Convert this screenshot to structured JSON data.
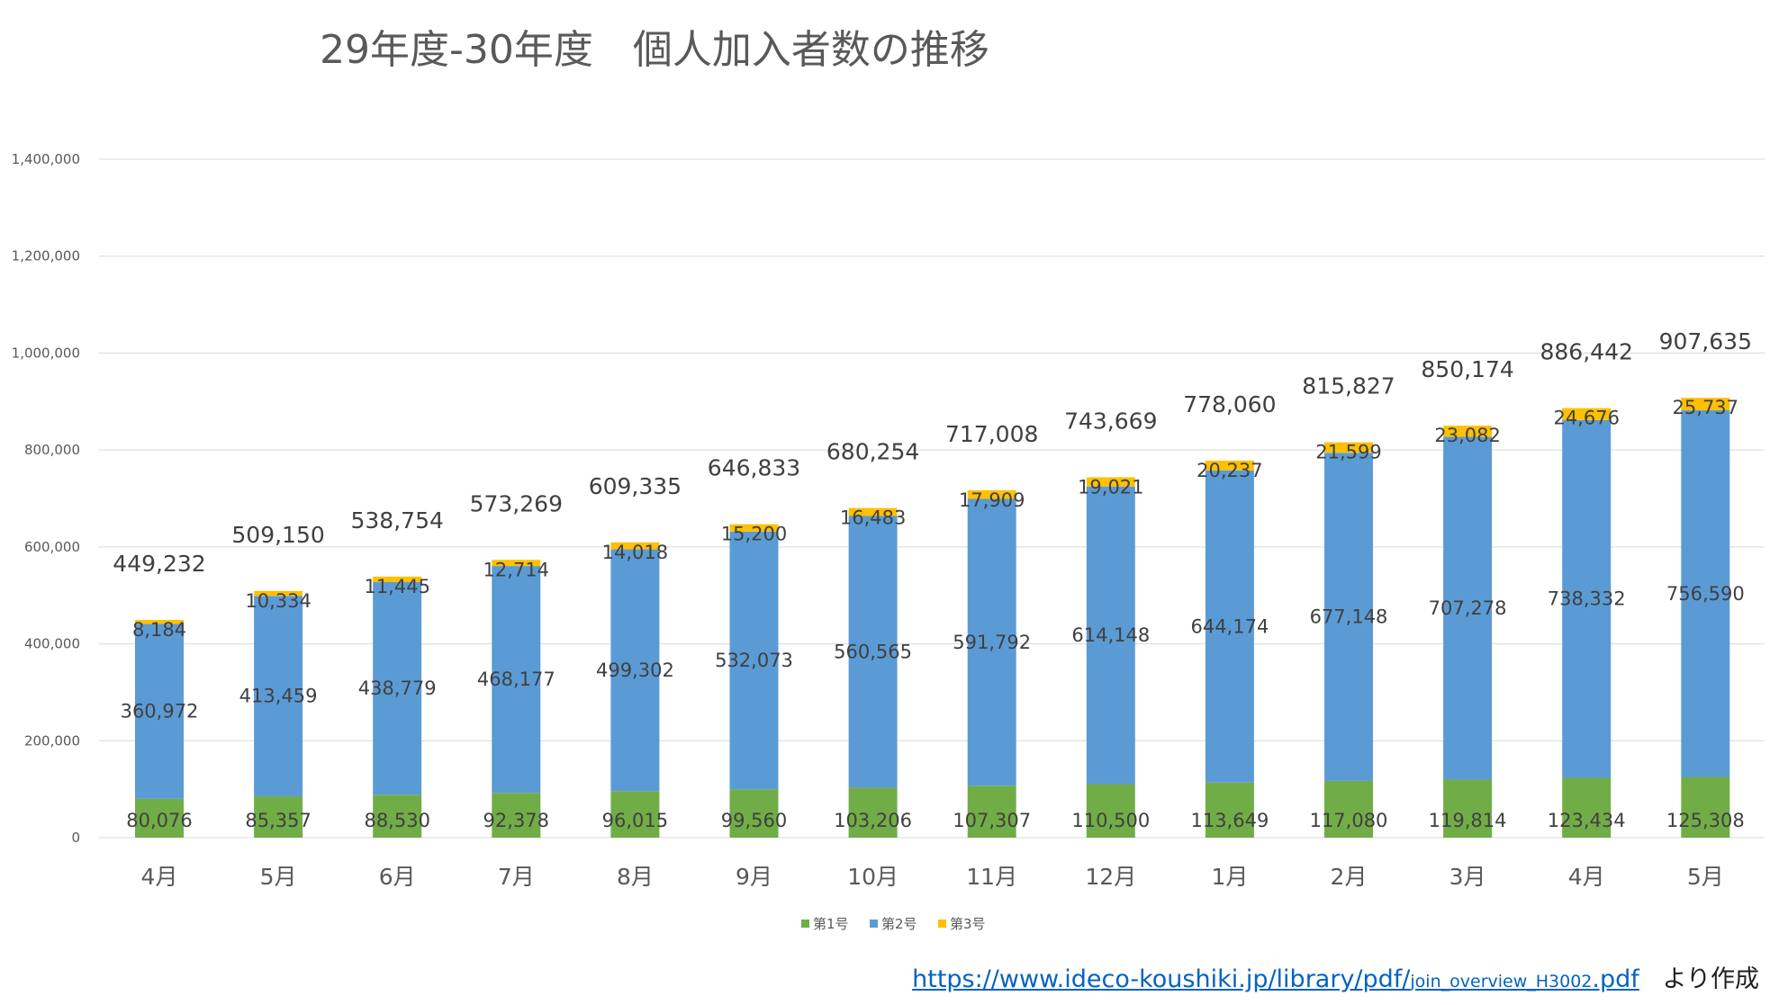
{
  "chart_data": {
    "type": "bar",
    "stacked": true,
    "title": "29年度-30年度　個人加入者数の推移",
    "categories": [
      "4月",
      "5月",
      "6月",
      "7月",
      "8月",
      "9月",
      "10月",
      "11月",
      "12月",
      "1月",
      "2月",
      "3月",
      "4月",
      "5月"
    ],
    "series": [
      {
        "name": "第1号",
        "color": "#70ad47",
        "values": [
          80076,
          85357,
          88530,
          92378,
          96015,
          99560,
          103206,
          107307,
          110500,
          113649,
          117080,
          119814,
          123434,
          125308
        ],
        "labels": [
          "80,076",
          "85,357",
          "88,530",
          "92,378",
          "96,015",
          "99,560",
          "103,206",
          "107,307",
          "110,500",
          "113,649",
          "117,080",
          "119,814",
          "123,434",
          "125,308"
        ]
      },
      {
        "name": "第2号",
        "color": "#5b9bd5",
        "values": [
          360972,
          413459,
          438779,
          468177,
          499302,
          532073,
          560565,
          591792,
          614148,
          644174,
          677148,
          707278,
          738332,
          756590
        ],
        "labels": [
          "360,972",
          "413,459",
          "438,779",
          "468,177",
          "499,302",
          "532,073",
          "560,565",
          "591,792",
          "614,148",
          "644,174",
          "677,148",
          "707,278",
          "738,332",
          "756,590"
        ]
      },
      {
        "name": "第3号",
        "color": "#ffc000",
        "values": [
          8184,
          10334,
          11445,
          12714,
          14018,
          15200,
          16483,
          17909,
          19021,
          20237,
          21599,
          23082,
          24676,
          25737
        ],
        "labels": [
          "8,184",
          "10,334",
          "11,445",
          "12,714",
          "14,018",
          "15,200",
          "16,483",
          "17,909",
          "19,021",
          "20,237",
          "21,599",
          "23,082",
          "24,676",
          "25,737"
        ]
      }
    ],
    "totals": [
      449232,
      509150,
      538754,
      573269,
      609335,
      646833,
      680254,
      717008,
      743669,
      778060,
      815827,
      850174,
      886442,
      907635
    ],
    "total_labels": [
      "449,232",
      "509,150",
      "538,754",
      "573,269",
      "609,335",
      "646,833",
      "680,254",
      "717,008",
      "743,669",
      "778,060",
      "815,827",
      "850,174",
      "886,442",
      "907,635"
    ],
    "ylim": [
      0,
      1400000
    ],
    "yticks": [
      0,
      200000,
      400000,
      600000,
      800000,
      1000000,
      1200000,
      1400000
    ],
    "ytick_labels": [
      "0",
      "200,000",
      "400,000",
      "600,000",
      "800,000",
      "1,000,000",
      "1,200,000",
      "1,400,000"
    ],
    "xlabel": "",
    "ylabel": "",
    "grid": true,
    "legend": "bottom"
  },
  "source": {
    "url_main": "https://www.ideco-koushiki.jp/library/pdf/",
    "url_small": "join_overview_H3002",
    "url_ext": ".pdf",
    "suffix": "より作成"
  }
}
